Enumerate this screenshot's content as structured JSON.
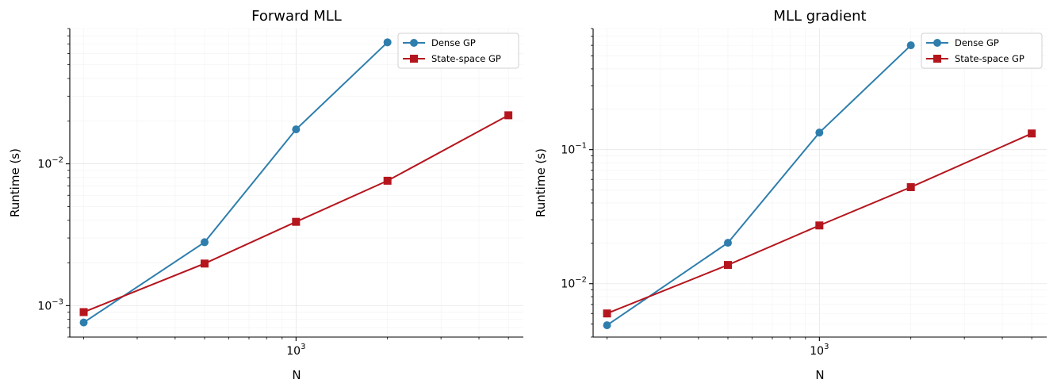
{
  "colors": {
    "dense": "#2e7ead",
    "statespace": "#b5161e"
  },
  "chart_data": [
    {
      "type": "line",
      "title": "Forward MLL",
      "xlabel": "N",
      "ylabel": "Runtime (s)",
      "xscale": "log",
      "yscale": "log",
      "xlim": [
        180,
        5600
      ],
      "ylim": [
        0.0006,
        0.09
      ],
      "xticks": [
        {
          "value": 1000,
          "base": "10",
          "exp": "3"
        }
      ],
      "yticks": [
        {
          "value": 0.001,
          "base": "10",
          "exp": "−3"
        },
        {
          "value": 0.01,
          "base": "10",
          "exp": "−2"
        }
      ],
      "grid": true,
      "legend": "top-right",
      "series": [
        {
          "name": "Dense GP",
          "marker": "circle",
          "x": [
            200,
            500,
            1000,
            2000
          ],
          "y": [
            0.00076,
            0.0028,
            0.0175,
            0.072
          ]
        },
        {
          "name": "State-space GP",
          "marker": "square",
          "x": [
            200,
            500,
            1000,
            2000,
            5000
          ],
          "y": [
            0.0009,
            0.00198,
            0.0039,
            0.0076,
            0.022
          ]
        }
      ]
    },
    {
      "type": "line",
      "title": "MLL gradient",
      "xlabel": "N",
      "ylabel": "Runtime (s)",
      "xscale": "log",
      "yscale": "log",
      "xlim": [
        180,
        5600
      ],
      "ylim": [
        0.004,
        0.8
      ],
      "xticks": [
        {
          "value": 1000,
          "base": "10",
          "exp": "3"
        }
      ],
      "yticks": [
        {
          "value": 0.01,
          "base": "10",
          "exp": "−2"
        },
        {
          "value": 0.1,
          "base": "10",
          "exp": "−1"
        }
      ],
      "grid": true,
      "legend": "top-right",
      "series": [
        {
          "name": "Dense GP",
          "marker": "circle",
          "x": [
            200,
            500,
            1000,
            2000
          ],
          "y": [
            0.0049,
            0.0202,
            0.134,
            0.6
          ]
        },
        {
          "name": "State-space GP",
          "marker": "square",
          "x": [
            200,
            500,
            1000,
            2000,
            5000
          ],
          "y": [
            0.006,
            0.0138,
            0.0272,
            0.0525,
            0.132
          ]
        }
      ]
    }
  ]
}
